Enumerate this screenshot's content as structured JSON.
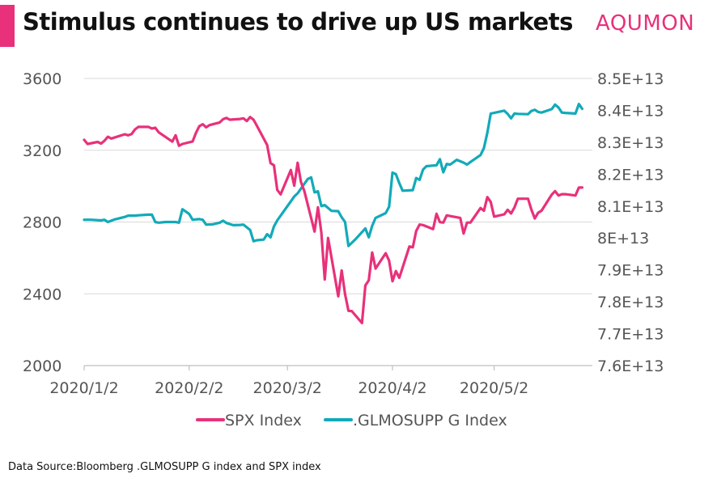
{
  "header": {
    "title": "Stimulus continues to drive up US markets",
    "brand": "AQUMON"
  },
  "footer": {
    "source": "Data Source:Bloomberg .GLMOSUPP G index and SPX index"
  },
  "colors": {
    "accent": "#e8317a",
    "spx": "#e8317a",
    "glmosupp": "#12aab9",
    "grid": "#d9d9d9"
  },
  "chart_data": {
    "type": "line",
    "title": "Stimulus continues to drive up US markets",
    "legend_position": "bottom",
    "grid": true,
    "x_tick_labels": [
      "2020/1/2",
      "2020/2/2",
      "2020/3/2",
      "2020/4/2",
      "2020/5/2"
    ],
    "x_ticks": [
      0,
      31,
      60,
      91,
      121
    ],
    "x_range": [
      0,
      150
    ],
    "y_left": {
      "ylim": [
        2000,
        3600
      ],
      "ticks": [
        2000,
        2400,
        2800,
        3200,
        3600
      ],
      "tick_labels": [
        "2000",
        "2400",
        "2800",
        "3200",
        "3600"
      ]
    },
    "y_right": {
      "ylim": [
        76000000000000.0,
        85000000000000.0
      ],
      "ticks": [
        76000000000000.0,
        77000000000000.0,
        78000000000000.0,
        79000000000000.0,
        80000000000000.0,
        81000000000000.0,
        82000000000000.0,
        83000000000000.0,
        84000000000000.0,
        85000000000000.0
      ],
      "tick_labels": [
        "7.6E+13",
        "7.7E+13",
        "7.8E+13",
        "7.9E+13",
        "8E+13",
        "8.1E+13",
        "8.2E+13",
        "8.3E+13",
        "8.4E+13",
        "8.5E+13"
      ]
    },
    "series": [
      {
        "name": "SPX Index",
        "axis": "left",
        "color": "#e8317a",
        "points": [
          [
            0,
            3258
          ],
          [
            1,
            3235
          ],
          [
            4,
            3246
          ],
          [
            5,
            3237
          ],
          [
            6,
            3253
          ],
          [
            7,
            3275
          ],
          [
            8,
            3265
          ],
          [
            12,
            3289
          ],
          [
            13,
            3283
          ],
          [
            14,
            3290
          ],
          [
            15,
            3316
          ],
          [
            16,
            3330
          ],
          [
            19,
            3330
          ],
          [
            20,
            3321
          ],
          [
            21,
            3325
          ],
          [
            22,
            3300
          ],
          [
            26,
            3248
          ],
          [
            27,
            3283
          ],
          [
            28,
            3225
          ],
          [
            29,
            3235
          ],
          [
            32,
            3249
          ],
          [
            33,
            3297
          ],
          [
            34,
            3334
          ],
          [
            35,
            3345
          ],
          [
            36,
            3328
          ],
          [
            37,
            3340
          ],
          [
            40,
            3355
          ],
          [
            41,
            3373
          ],
          [
            42,
            3380
          ],
          [
            43,
            3370
          ],
          [
            46,
            3374
          ],
          [
            47,
            3378
          ],
          [
            48,
            3363
          ],
          [
            49,
            3385
          ],
          [
            50,
            3370
          ],
          [
            51,
            3336
          ],
          [
            54,
            3229
          ],
          [
            55,
            3128
          ],
          [
            56,
            3116
          ],
          [
            57,
            2979
          ],
          [
            58,
            2954
          ],
          [
            61,
            3090
          ],
          [
            62,
            3003
          ],
          [
            63,
            3130
          ],
          [
            64,
            3023
          ],
          [
            65,
            2972
          ],
          [
            68,
            2747
          ],
          [
            69,
            2882
          ],
          [
            70,
            2741
          ],
          [
            71,
            2480
          ],
          [
            72,
            2711
          ],
          [
            75,
            2386
          ],
          [
            76,
            2530
          ],
          [
            77,
            2398
          ],
          [
            78,
            2305
          ],
          [
            79,
            2304
          ],
          [
            82,
            2237
          ],
          [
            83,
            2447
          ],
          [
            84,
            2475
          ],
          [
            85,
            2630
          ],
          [
            86,
            2541
          ],
          [
            89,
            2626
          ],
          [
            90,
            2585
          ],
          [
            91,
            2470
          ],
          [
            92,
            2527
          ],
          [
            93,
            2489
          ],
          [
            96,
            2664
          ],
          [
            97,
            2659
          ],
          [
            98,
            2750
          ],
          [
            99,
            2786
          ],
          [
            100,
            2783
          ],
          [
            103,
            2761
          ],
          [
            104,
            2846
          ],
          [
            105,
            2799
          ],
          [
            106,
            2797
          ],
          [
            107,
            2837
          ],
          [
            111,
            2823
          ],
          [
            112,
            2736
          ],
          [
            113,
            2797
          ],
          [
            114,
            2797
          ],
          [
            117,
            2878
          ],
          [
            118,
            2863
          ],
          [
            119,
            2939
          ],
          [
            120,
            2912
          ],
          [
            121,
            2830
          ],
          [
            124,
            2843
          ],
          [
            125,
            2868
          ],
          [
            126,
            2848
          ],
          [
            127,
            2881
          ],
          [
            128,
            2930
          ],
          [
            131,
            2930
          ],
          [
            132,
            2870
          ],
          [
            133,
            2820
          ],
          [
            134,
            2852
          ],
          [
            135,
            2863
          ],
          [
            138,
            2953
          ],
          [
            139,
            2972
          ],
          [
            140,
            2948
          ],
          [
            141,
            2955
          ],
          [
            142,
            2955
          ],
          [
            145,
            2948
          ],
          [
            146,
            2992
          ],
          [
            147,
            2992
          ]
        ]
      },
      {
        "name": ".GLMOSUPP G Index",
        "axis": "right",
        "color": "#12aab9",
        "points": [
          [
            0,
            80570000000000.0
          ],
          [
            2,
            80570000000000.0
          ],
          [
            5,
            80550000000000.0
          ],
          [
            6,
            80570000000000.0
          ],
          [
            7,
            80500000000000.0
          ],
          [
            9,
            80580000000000.0
          ],
          [
            12,
            80660000000000.0
          ],
          [
            13,
            80700000000000.0
          ],
          [
            15,
            80700000000000.0
          ],
          [
            16,
            80710000000000.0
          ],
          [
            19,
            80730000000000.0
          ],
          [
            20,
            80730000000000.0
          ],
          [
            21,
            80500000000000.0
          ],
          [
            22,
            80480000000000.0
          ],
          [
            24,
            80500000000000.0
          ],
          [
            27,
            80500000000000.0
          ],
          [
            28,
            80480000000000.0
          ],
          [
            29,
            80900000000000.0
          ],
          [
            31,
            80750000000000.0
          ],
          [
            32,
            80570000000000.0
          ],
          [
            34,
            80590000000000.0
          ],
          [
            35,
            80570000000000.0
          ],
          [
            36,
            80420000000000.0
          ],
          [
            38,
            80430000000000.0
          ],
          [
            40,
            80480000000000.0
          ],
          [
            41,
            80540000000000.0
          ],
          [
            42,
            80470000000000.0
          ],
          [
            44,
            80400000000000.0
          ],
          [
            46,
            80410000000000.0
          ],
          [
            47,
            80420000000000.0
          ],
          [
            49,
            80250000000000.0
          ],
          [
            50,
            79900000000000.0
          ],
          [
            51,
            79930000000000.0
          ],
          [
            53,
            79950000000000.0
          ],
          [
            54,
            80120000000000.0
          ],
          [
            55,
            80020000000000.0
          ],
          [
            56,
            80360000000000.0
          ],
          [
            57,
            80550000000000.0
          ],
          [
            61,
            81150000000000.0
          ],
          [
            62,
            81300000000000.0
          ],
          [
            63,
            81400000000000.0
          ],
          [
            66,
            81850000000000.0
          ],
          [
            67,
            81900000000000.0
          ],
          [
            68,
            81430000000000.0
          ],
          [
            69,
            81460000000000.0
          ],
          [
            70,
            81000000000000.0
          ],
          [
            71,
            81030000000000.0
          ],
          [
            73,
            80850000000000.0
          ],
          [
            75,
            80840000000000.0
          ],
          [
            76,
            80650000000000.0
          ],
          [
            77,
            80500000000000.0
          ],
          [
            78,
            79750000000000.0
          ],
          [
            80,
            79950000000000.0
          ],
          [
            83,
            80300000000000.0
          ],
          [
            84,
            80020000000000.0
          ],
          [
            85,
            80380000000000.0
          ],
          [
            86,
            80630000000000.0
          ],
          [
            89,
            80780000000000.0
          ],
          [
            90,
            80980000000000.0
          ],
          [
            91,
            82050000000000.0
          ],
          [
            92,
            82000000000000.0
          ],
          [
            93,
            81720000000000.0
          ],
          [
            94,
            81480000000000.0
          ],
          [
            97,
            81500000000000.0
          ],
          [
            98,
            81880000000000.0
          ],
          [
            99,
            81820000000000.0
          ],
          [
            100,
            82140000000000.0
          ],
          [
            101,
            82250000000000.0
          ],
          [
            104,
            82280000000000.0
          ],
          [
            105,
            82470000000000.0
          ],
          [
            106,
            82060000000000.0
          ],
          [
            107,
            82320000000000.0
          ],
          [
            108,
            82300000000000.0
          ],
          [
            110,
            82450000000000.0
          ],
          [
            112,
            82360000000000.0
          ],
          [
            113,
            82300000000000.0
          ],
          [
            114,
            82380000000000.0
          ],
          [
            117,
            82600000000000.0
          ],
          [
            118,
            82820000000000.0
          ],
          [
            119,
            83300000000000.0
          ],
          [
            120,
            83900000000000.0
          ],
          [
            121,
            83920000000000.0
          ],
          [
            124,
            83990000000000.0
          ],
          [
            125,
            83890000000000.0
          ],
          [
            126,
            83750000000000.0
          ],
          [
            127,
            83900000000000.0
          ],
          [
            128,
            83890000000000.0
          ],
          [
            131,
            83880000000000.0
          ],
          [
            132,
            83980000000000.0
          ],
          [
            133,
            84020000000000.0
          ],
          [
            134,
            83950000000000.0
          ],
          [
            135,
            83930000000000.0
          ],
          [
            138,
            84040000000000.0
          ],
          [
            139,
            84180000000000.0
          ],
          [
            140,
            84090000000000.0
          ],
          [
            141,
            83930000000000.0
          ],
          [
            142,
            83920000000000.0
          ],
          [
            145,
            83900000000000.0
          ],
          [
            146,
            84200000000000.0
          ],
          [
            147,
            84050000000000.0
          ]
        ]
      }
    ]
  }
}
